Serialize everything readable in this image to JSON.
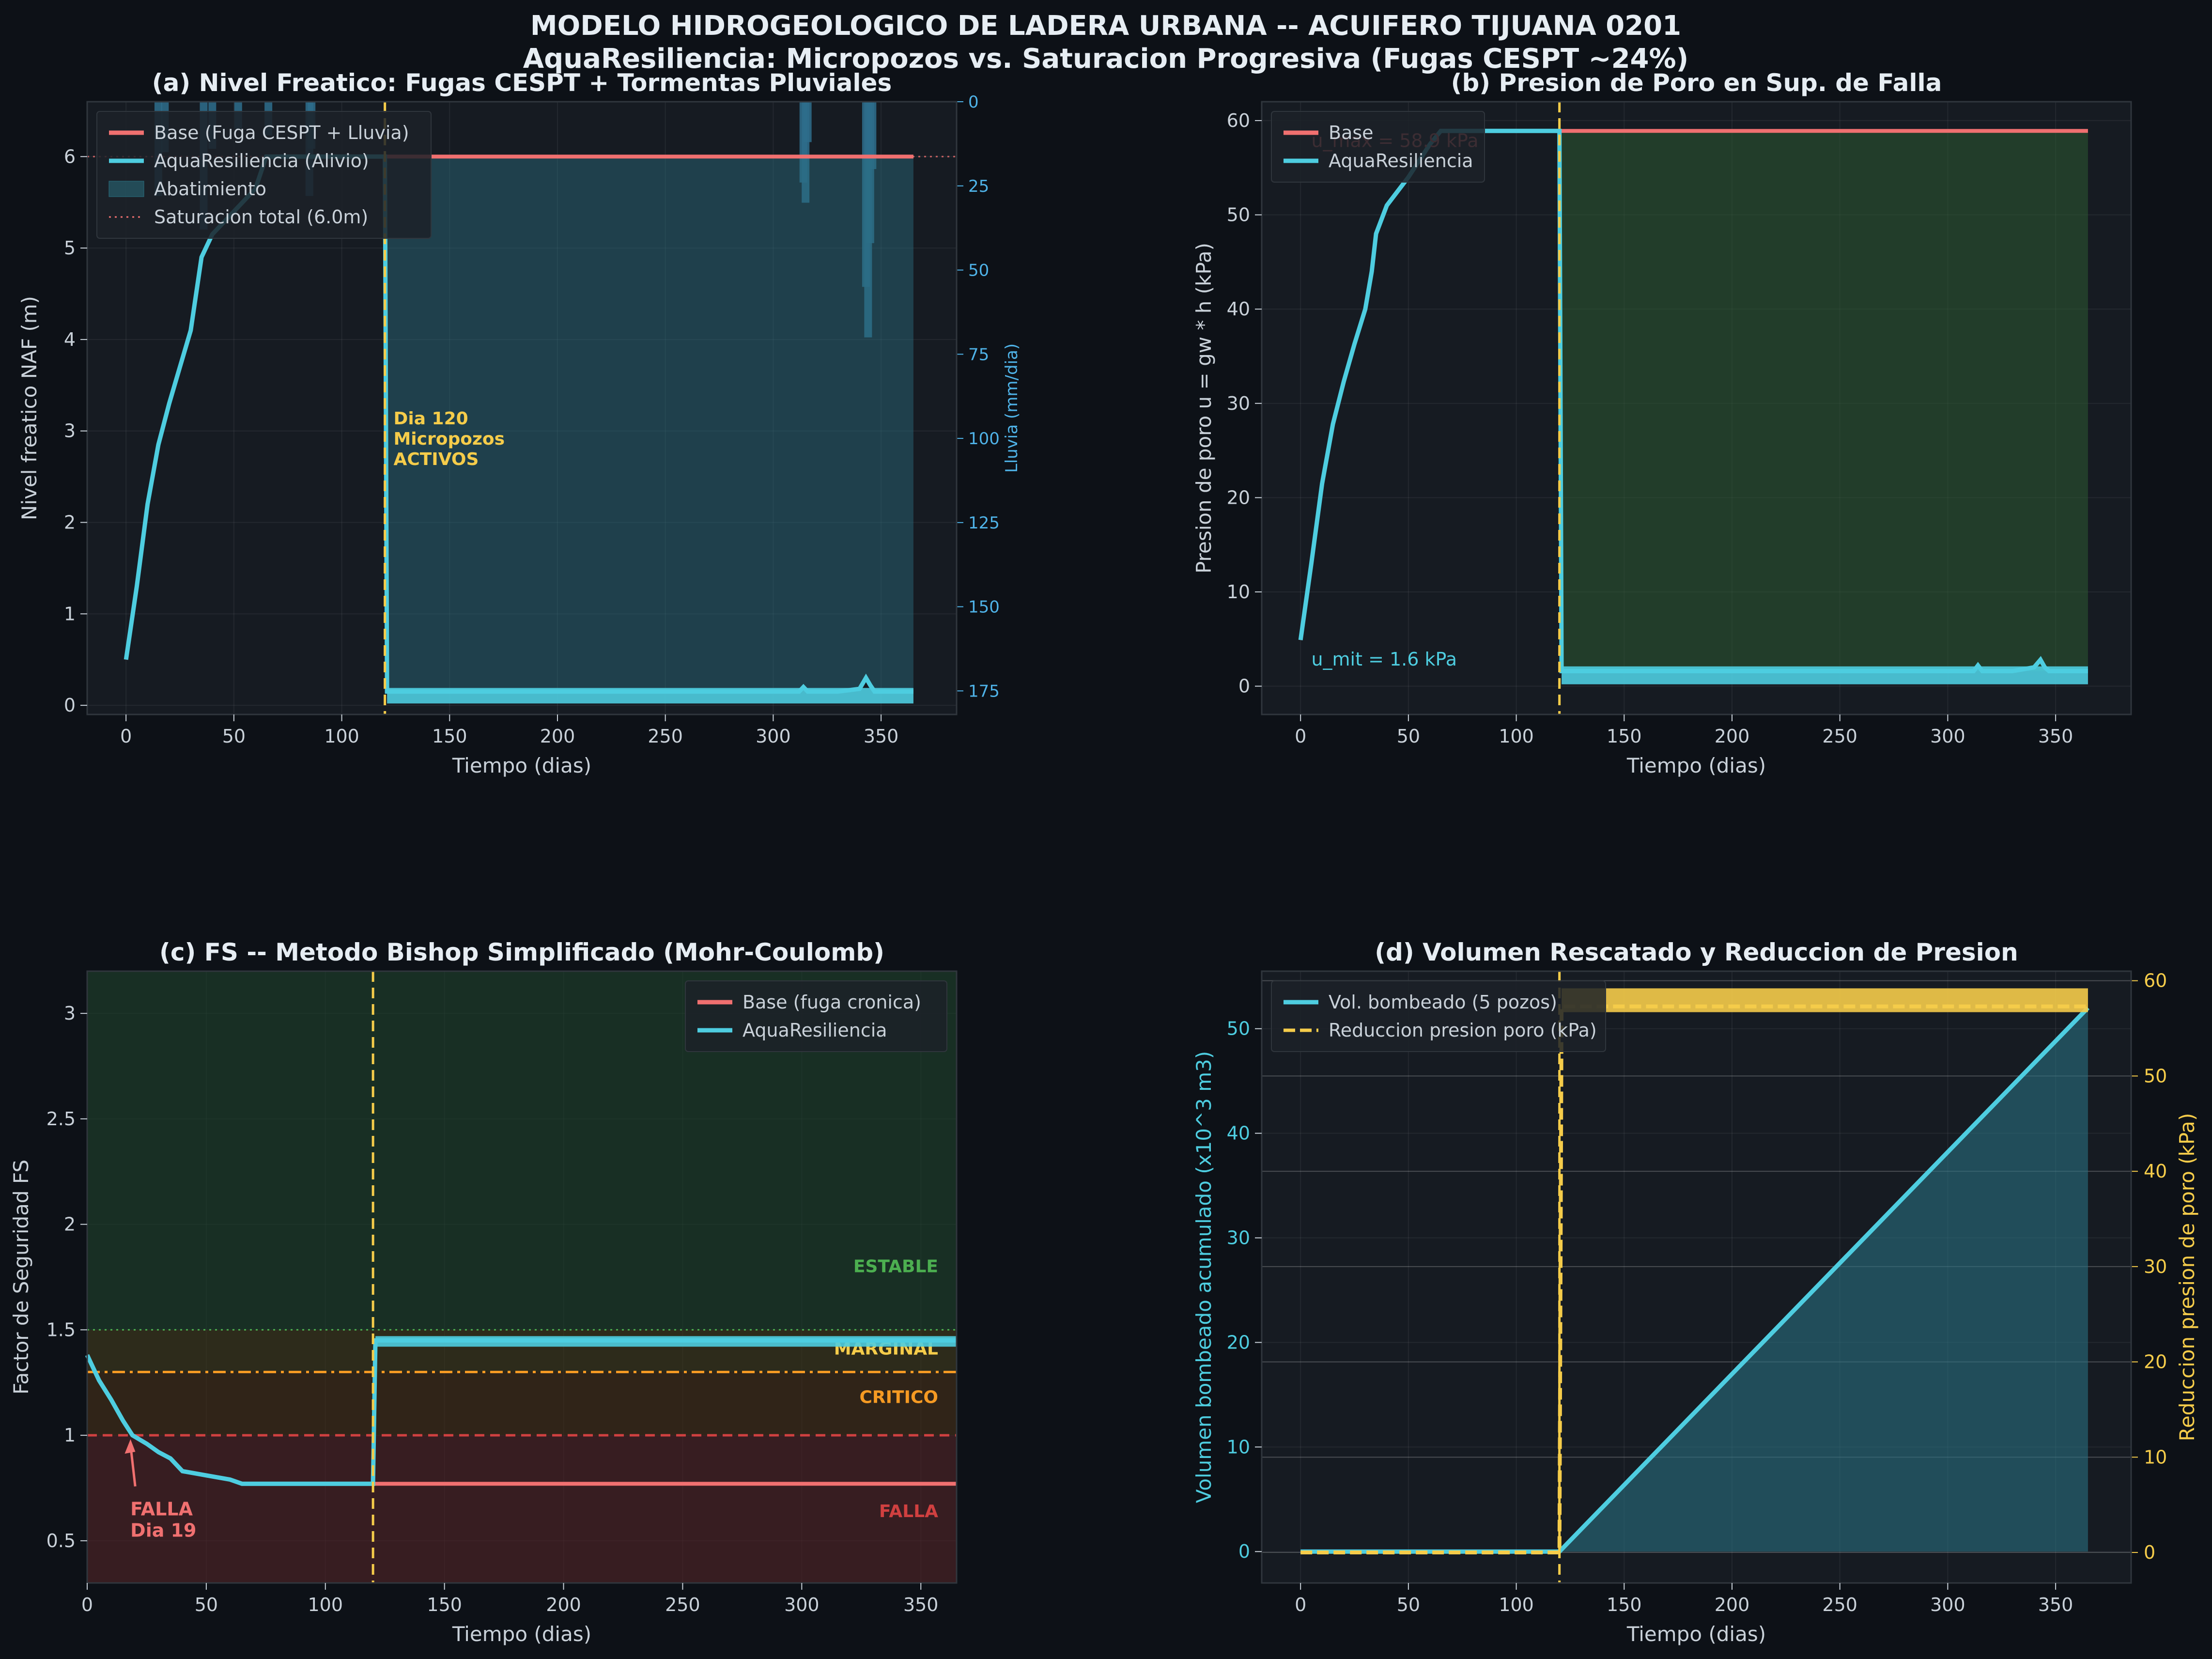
{
  "figure": {
    "title_line1": "MODELO HIDROGEOLOGICO DE LADERA URBANA -- ACUIFERO TIJUANA 0201",
    "title_line2": "AquaResiliencia: Micropozos vs. Saturacion Progresiva (Fugas CESPT ~24%)"
  },
  "colors": {
    "background": "#0d1117",
    "panel": "#161b22",
    "base": "#f07070",
    "aqua": "#4ecde0",
    "accent": "#f5cc4a",
    "rain": "#2e6d8c",
    "stable": "#4caf50",
    "critical": "#f59a23",
    "failure": "#d04040",
    "text": "#c9d1d9",
    "title": "#e6edf3"
  },
  "chart_data": [
    {
      "id": "a",
      "type": "line",
      "title": "(a) Nivel Freatico: Fugas CESPT + Tormentas Pluviales",
      "xlabel": "Tiempo (dias)",
      "ylabel": "Nivel freatico NAF (m)",
      "y2label": "Lluvia (mm/dia)",
      "xlim": [
        -18,
        385
      ],
      "ylim": [
        -0.1,
        6.6
      ],
      "y2lim": [
        0,
        182
      ],
      "y2_inverted": true,
      "xticks": [
        0,
        50,
        100,
        150,
        200,
        250,
        300,
        350
      ],
      "yticks": [
        0,
        1,
        2,
        3,
        4,
        5,
        6
      ],
      "y2ticks": [
        0,
        25,
        50,
        75,
        100,
        125,
        150,
        175
      ],
      "legend": [
        "Base (Fuga CESPT + Lluvia)",
        "AquaResiliencia (Alivio)",
        "Abatimiento",
        "Saturacion total (6.0m)"
      ],
      "legend_position": "upper-left",
      "series": [
        {
          "name": "Base (Fuga CESPT + Lluvia)",
          "x": [
            0,
            5,
            10,
            15,
            20,
            25,
            30,
            35,
            40,
            50,
            60,
            65,
            70,
            119,
            120,
            365
          ],
          "y": [
            0.5,
            1.3,
            2.2,
            2.85,
            3.3,
            3.7,
            4.1,
            4.9,
            5.15,
            5.4,
            5.65,
            6.0,
            6.0,
            6.0,
            6.0,
            6.0
          ]
        },
        {
          "name": "AquaResiliencia (Alivio)",
          "x": [
            0,
            5,
            10,
            15,
            20,
            25,
            30,
            35,
            40,
            50,
            60,
            65,
            70,
            119,
            120,
            121,
            300,
            312,
            314,
            316,
            330,
            340,
            343,
            345,
            347,
            350,
            365
          ],
          "y": [
            0.5,
            1.3,
            2.2,
            2.85,
            3.3,
            3.7,
            4.1,
            4.9,
            5.15,
            5.4,
            5.65,
            6.0,
            6.0,
            6.0,
            6.0,
            0.15,
            0.15,
            0.15,
            0.2,
            0.15,
            0.15,
            0.18,
            0.3,
            0.22,
            0.15,
            0.15,
            0.15
          ]
        }
      ],
      "reference_lines": [
        {
          "name": "Saturacion total (6.0m)",
          "y": 6.0
        },
        {
          "name": "micropozos",
          "x": 120
        }
      ],
      "rain": [
        {
          "day": 15,
          "mm": 28
        },
        {
          "day": 18,
          "mm": 15
        },
        {
          "day": 36,
          "mm": 38
        },
        {
          "day": 40,
          "mm": 14
        },
        {
          "day": 52,
          "mm": 8
        },
        {
          "day": 66,
          "mm": 10
        },
        {
          "day": 85,
          "mm": 28
        },
        {
          "day": 86,
          "mm": 14
        },
        {
          "day": 314,
          "mm": 24
        },
        {
          "day": 315,
          "mm": 30
        },
        {
          "day": 316,
          "mm": 12
        },
        {
          "day": 343,
          "mm": 55
        },
        {
          "day": 344,
          "mm": 70
        },
        {
          "day": 345,
          "mm": 42
        },
        {
          "day": 346,
          "mm": 20
        }
      ],
      "annotation": {
        "line1": "Dia 120",
        "line2": "Micropozos",
        "line3": "ACTIVOS",
        "x": 124,
        "y": 2.65
      }
    },
    {
      "id": "b",
      "type": "line",
      "title": "(b) Presion de Poro en Sup. de Falla",
      "xlabel": "Tiempo (dias)",
      "ylabel": "Presion de poro  u = gw * h  (kPa)",
      "xlim": [
        -18,
        385
      ],
      "ylim": [
        -3,
        62
      ],
      "xticks": [
        0,
        50,
        100,
        150,
        200,
        250,
        300,
        350
      ],
      "yticks": [
        0,
        10,
        20,
        30,
        40,
        50,
        60
      ],
      "legend": [
        "Base",
        "AquaResiliencia"
      ],
      "legend_position": "upper-left",
      "series": [
        {
          "name": "Base",
          "x": [
            0,
            5,
            10,
            15,
            20,
            25,
            30,
            33,
            35,
            40,
            50,
            60,
            65,
            70,
            119,
            120,
            365
          ],
          "y": [
            4.9,
            13,
            21.5,
            27.8,
            32.3,
            36.3,
            40,
            44,
            48,
            51,
            54,
            57.5,
            58.9,
            58.9,
            58.9,
            58.9,
            58.9
          ]
        },
        {
          "name": "AquaResiliencia",
          "x": [
            0,
            5,
            10,
            15,
            20,
            25,
            30,
            33,
            35,
            40,
            50,
            60,
            65,
            70,
            119,
            120,
            121,
            300,
            312,
            314,
            316,
            330,
            340,
            343,
            345,
            347,
            350,
            365
          ],
          "y": [
            4.9,
            13,
            21.5,
            27.8,
            32.3,
            36.3,
            40,
            44,
            48,
            51,
            54,
            57.5,
            58.9,
            58.9,
            58.9,
            58.9,
            1.6,
            1.6,
            1.6,
            2.2,
            1.6,
            1.6,
            2.0,
            2.8,
            2.0,
            1.6,
            1.6,
            1.6
          ]
        }
      ],
      "reference_lines": [
        {
          "name": "micropozos",
          "x": 120
        }
      ],
      "annotations": [
        {
          "text": "u_max = 58.9 kPa",
          "x": 5,
          "y": 57.2
        },
        {
          "text": "u_mit = 1.6 kPa",
          "x": 5,
          "y": 2.2
        }
      ]
    },
    {
      "id": "c",
      "type": "line",
      "title": "(c) FS -- Metodo Bishop Simplificado (Mohr-Coulomb)",
      "xlabel": "Tiempo (dias)",
      "ylabel": "Factor de Seguridad FS",
      "xlim": [
        0,
        365
      ],
      "ylim": [
        0.3,
        3.2
      ],
      "xticks": [
        0,
        50,
        100,
        150,
        200,
        250,
        300,
        350
      ],
      "yticks": [
        0.5,
        1.0,
        1.5,
        2.0,
        2.5,
        3.0
      ],
      "legend": [
        "Base (fuga cronica)",
        "AquaResiliencia"
      ],
      "legend_position": "upper-right",
      "series": [
        {
          "name": "Base (fuga cronica)",
          "x": [
            0,
            5,
            10,
            15,
            19,
            25,
            30,
            35,
            40,
            50,
            60,
            65,
            70,
            119,
            120,
            365
          ],
          "y": [
            1.38,
            1.26,
            1.17,
            1.07,
            1.0,
            0.96,
            0.92,
            0.89,
            0.83,
            0.81,
            0.79,
            0.77,
            0.77,
            0.77,
            0.77,
            0.77
          ]
        },
        {
          "name": "AquaResiliencia",
          "x": [
            0,
            5,
            10,
            15,
            19,
            25,
            30,
            35,
            40,
            50,
            60,
            65,
            70,
            119,
            120,
            121,
            365
          ],
          "y": [
            1.38,
            1.26,
            1.17,
            1.07,
            1.0,
            0.96,
            0.92,
            0.89,
            0.83,
            0.81,
            0.79,
            0.77,
            0.77,
            0.77,
            0.77,
            1.45,
            1.45
          ]
        }
      ],
      "zones": [
        {
          "label": "ESTABLE",
          "from": 1.5,
          "to": 3.2,
          "label_y": 1.8
        },
        {
          "label": "MARGINAL",
          "from": 1.3,
          "to": 1.5,
          "label_y": 1.41
        },
        {
          "label": "CRITICO",
          "from": 1.0,
          "to": 1.3,
          "label_y": 1.18
        },
        {
          "label": "FALLA",
          "from": 0.3,
          "to": 1.0,
          "label_y": 0.64
        }
      ],
      "reference_lines": [
        {
          "name": "FS 1.5",
          "y": 1.5
        },
        {
          "name": "FS 1.3",
          "y": 1.3
        },
        {
          "name": "FS 1.0",
          "y": 1.0
        },
        {
          "name": "micropozos",
          "x": 120
        }
      ],
      "annotation": {
        "line1": "FALLA",
        "line2": "Dia 19",
        "x": 19,
        "y": 1.0,
        "text_x": 10,
        "text_y": 0.62
      }
    },
    {
      "id": "d",
      "type": "line",
      "title": "(d) Volumen Rescatado y Reduccion de Presion",
      "xlabel": "Tiempo (dias)",
      "ylabel": "Volumen bombeado acumulado (x10^3 m3)",
      "y2label": "Reduccion presion de poro (kPa)",
      "xlim": [
        -18,
        385
      ],
      "ylim": [
        -3,
        55.5
      ],
      "y2lim": [
        -3.2,
        61
      ],
      "xticks": [
        0,
        50,
        100,
        150,
        200,
        250,
        300,
        350
      ],
      "yticks": [
        0,
        10,
        20,
        30,
        40,
        50
      ],
      "y2ticks": [
        0,
        10,
        20,
        30,
        40,
        50,
        60
      ],
      "legend": [
        "Vol. bombeado (5 pozos)",
        "Reduccion presion poro (kPa)"
      ],
      "legend_position": "upper-left",
      "series": [
        {
          "name": "Vol. bombeado (5 pozos)",
          "axis": "left",
          "x": [
            0,
            120,
            365
          ],
          "y": [
            0,
            0,
            52
          ]
        },
        {
          "name": "Reduccion presion poro (kPa)",
          "axis": "right",
          "x": [
            0,
            119,
            120,
            121,
            365
          ],
          "y": [
            0,
            0,
            0,
            57.3,
            57.3
          ],
          "band": [
            57.3,
            58.6
          ]
        }
      ],
      "reference_lines": [
        {
          "name": "micropozos",
          "x": 120
        }
      ]
    }
  ]
}
